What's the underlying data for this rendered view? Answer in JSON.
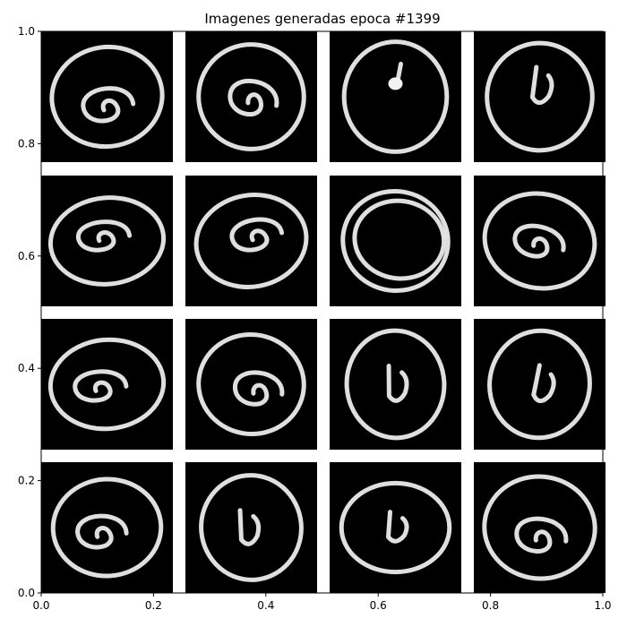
{
  "chart_data": {
    "type": "image-grid",
    "title": "Imagenes generadas epoca #1399",
    "xlim": [
      0.0,
      1.0
    ],
    "ylim": [
      0.0,
      1.0
    ],
    "xticks": [
      "0.0",
      "0.2",
      "0.4",
      "0.6",
      "0.8",
      "1.0"
    ],
    "yticks": [
      "0.0",
      "0.2",
      "0.4",
      "0.6",
      "0.8",
      "1.0"
    ],
    "grid": {
      "rows": 4,
      "cols": 4
    },
    "background": "#000000",
    "stroke_color": "#f2f2f2",
    "images": [
      {
        "row": 0,
        "col": 0,
        "glyph": "spiral"
      },
      {
        "row": 0,
        "col": 1,
        "glyph": "spiral"
      },
      {
        "row": 0,
        "col": 2,
        "glyph": "dot-in-circle"
      },
      {
        "row": 0,
        "col": 3,
        "glyph": "hook-in-circle"
      },
      {
        "row": 1,
        "col": 0,
        "glyph": "spiral"
      },
      {
        "row": 1,
        "col": 1,
        "glyph": "spiral"
      },
      {
        "row": 1,
        "col": 2,
        "glyph": "double-circle"
      },
      {
        "row": 1,
        "col": 3,
        "glyph": "spiral"
      },
      {
        "row": 2,
        "col": 0,
        "glyph": "spiral"
      },
      {
        "row": 2,
        "col": 1,
        "glyph": "spiral"
      },
      {
        "row": 2,
        "col": 2,
        "glyph": "hook-in-circle"
      },
      {
        "row": 2,
        "col": 3,
        "glyph": "hook-in-circle"
      },
      {
        "row": 3,
        "col": 0,
        "glyph": "spiral"
      },
      {
        "row": 3,
        "col": 1,
        "glyph": "hook-in-circle"
      },
      {
        "row": 3,
        "col": 2,
        "glyph": "hook-in-circle"
      },
      {
        "row": 3,
        "col": 3,
        "glyph": "spiral"
      }
    ]
  }
}
